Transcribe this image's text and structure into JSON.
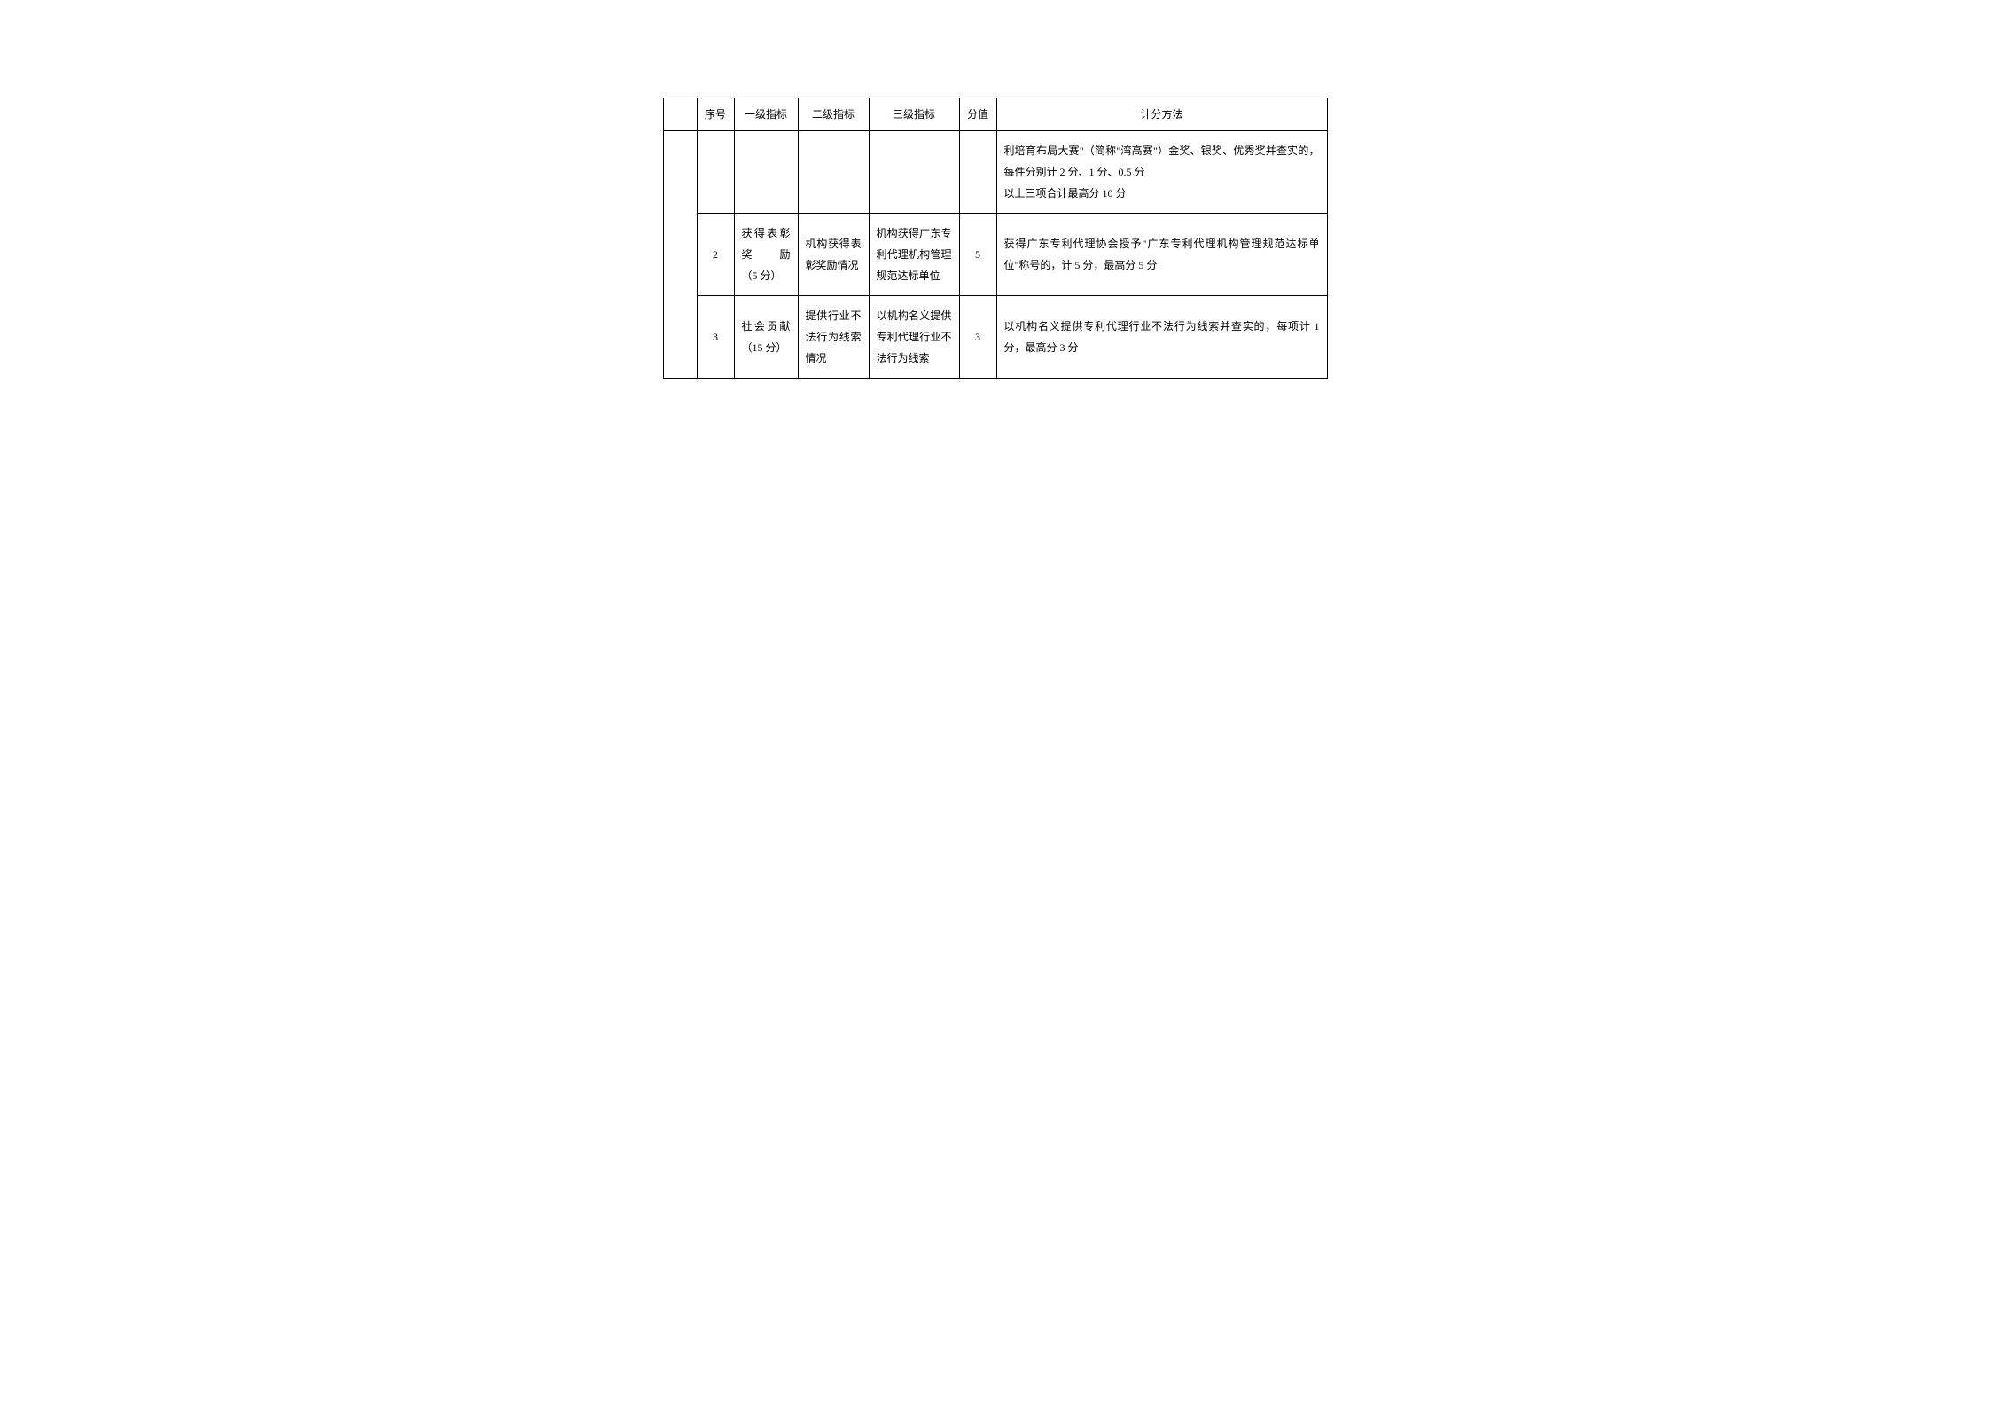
{
  "header": {
    "blank": "",
    "seq": "序号",
    "l1": "一级指标",
    "l2": "二级指标",
    "l3": "三级指标",
    "score": "分值",
    "method": "计分方法"
  },
  "rows": [
    {
      "seq": "",
      "l1": "",
      "l2": "",
      "l3": "",
      "score": "",
      "method": "利培育布局大赛\"（简称\"湾高赛\"）金奖、银奖、优秀奖并查实的，每件分别计 2 分、1 分、0.5 分\n以上三项合计最高分 10 分"
    },
    {
      "seq": "2",
      "l1": "获得表彰奖　　励（5 分）",
      "l2": "机构获得表彰奖励情况",
      "l3": "机构获得广东专利代理机构管理规范达标单位",
      "score": "5",
      "method": "获得广东专利代理协会授予\"广东专利代理机构管理规范达标单位\"称号的，计 5 分，最高分 5 分"
    },
    {
      "seq": "3",
      "l1": "社会贡献（15 分）",
      "l2": "提供行业不法行为线索情况",
      "l3": "以机构名义提供专利代理行业不法行为线索",
      "score": "3",
      "method": "以机构名义提供专利代理行业不法行为线索并查实的，每项计 1 分，最高分 3 分"
    }
  ]
}
